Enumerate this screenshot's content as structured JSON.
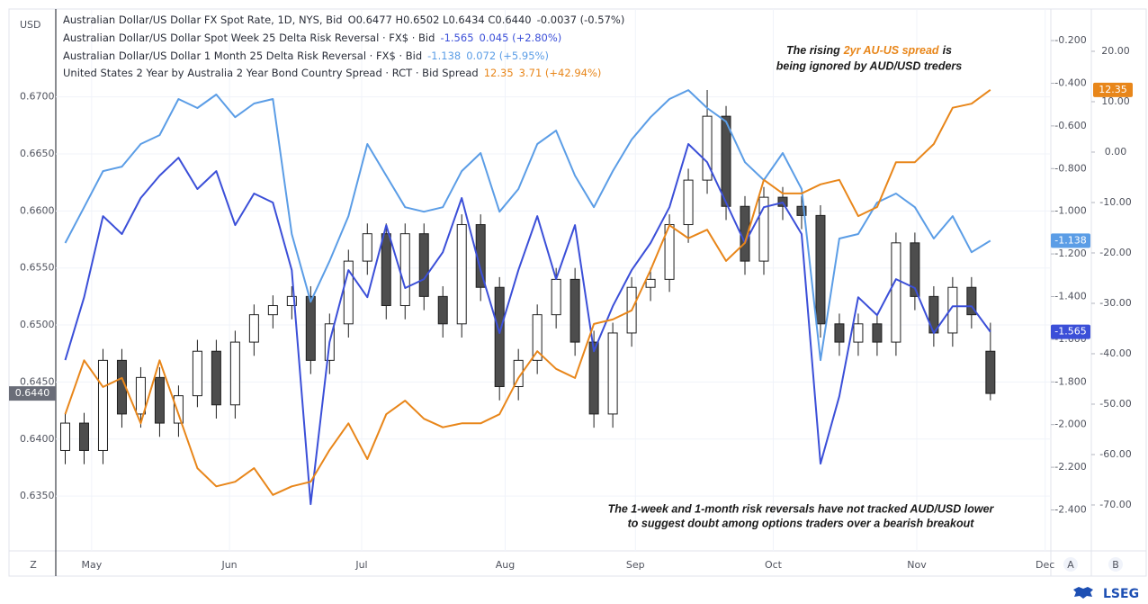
{
  "chart_data": {
    "type": "candlestick",
    "axis_unit": "USD",
    "price": {
      "name": "Australian Dollar/US Dollar FX Spot Rate, 1D, NYS, Bid",
      "quote": "O0.6477 H0.6502 L0.6434 C0.6440",
      "change": "-0.0037 (-0.57%)",
      "tag": "0.6440",
      "up_color": "#ffffff",
      "down_color": "#4d4d4d",
      "outline": "#1e1e1e"
    },
    "ohlc": {
      "open": [
        0.639,
        0.6414,
        0.639,
        0.6469,
        0.6422,
        0.6454,
        0.6414,
        0.6438,
        0.6477,
        0.643,
        0.6485,
        0.6509,
        0.6517,
        0.6525,
        0.6469,
        0.6501,
        0.6556,
        0.658,
        0.6517,
        0.658,
        0.6525,
        0.6501,
        0.6588,
        0.6533,
        0.6446,
        0.6469,
        0.6509,
        0.654,
        0.6485,
        0.6422,
        0.6493,
        0.6533,
        0.654,
        0.6588,
        0.6627,
        0.6683,
        0.6604,
        0.6556,
        0.6612,
        0.6604,
        0.6596,
        0.6501,
        0.6485,
        0.6501,
        0.6485,
        0.6572,
        0.6525,
        0.6493,
        0.6533,
        0.6477
      ],
      "high": [
        0.6423,
        0.6423,
        0.6479,
        0.6479,
        0.6463,
        0.6463,
        0.6447,
        0.6487,
        0.6487,
        0.6495,
        0.6518,
        0.6526,
        0.6534,
        0.6534,
        0.651,
        0.6566,
        0.6589,
        0.6589,
        0.6589,
        0.6589,
        0.6534,
        0.6597,
        0.6597,
        0.6542,
        0.6479,
        0.6518,
        0.655,
        0.655,
        0.6495,
        0.6502,
        0.6542,
        0.655,
        0.6597,
        0.6637,
        0.6706,
        0.6692,
        0.6613,
        0.6621,
        0.6621,
        0.6613,
        0.6605,
        0.651,
        0.651,
        0.651,
        0.6581,
        0.6581,
        0.6534,
        0.6542,
        0.6542,
        0.6502
      ],
      "low": [
        0.6378,
        0.6378,
        0.6378,
        0.641,
        0.641,
        0.6402,
        0.6402,
        0.6428,
        0.6418,
        0.6418,
        0.6473,
        0.6497,
        0.6505,
        0.6457,
        0.6457,
        0.6489,
        0.6544,
        0.6505,
        0.6505,
        0.6513,
        0.6489,
        0.6489,
        0.6521,
        0.6434,
        0.6434,
        0.6457,
        0.6497,
        0.6473,
        0.641,
        0.641,
        0.6481,
        0.6521,
        0.6529,
        0.6572,
        0.6615,
        0.6592,
        0.6544,
        0.6544,
        0.6592,
        0.6584,
        0.6489,
        0.6473,
        0.6473,
        0.6473,
        0.6473,
        0.6513,
        0.6481,
        0.6481,
        0.6497,
        0.6434
      ],
      "close": [
        0.6414,
        0.639,
        0.6469,
        0.6422,
        0.6454,
        0.6414,
        0.6438,
        0.6477,
        0.643,
        0.6485,
        0.6509,
        0.6517,
        0.6525,
        0.6469,
        0.6501,
        0.6556,
        0.658,
        0.6517,
        0.658,
        0.6525,
        0.6501,
        0.6588,
        0.6533,
        0.6446,
        0.6469,
        0.6509,
        0.654,
        0.6485,
        0.6422,
        0.6493,
        0.6533,
        0.654,
        0.6588,
        0.6627,
        0.6683,
        0.6604,
        0.6556,
        0.6612,
        0.6604,
        0.6596,
        0.6501,
        0.6485,
        0.6501,
        0.6485,
        0.6572,
        0.6525,
        0.6493,
        0.6533,
        0.6509,
        0.644
      ]
    },
    "series": [
      {
        "name": "Australian Dollar/US Dollar Spot Week 25 Delta Risk Reversal · FX$ · Bid",
        "last": "-1.565",
        "change": "0.045 (+2.80%)",
        "color": "#3b4fd8",
        "axis": "y2",
        "values": [
          -1.698,
          -1.403,
          -1.023,
          -1.107,
          -0.938,
          -0.833,
          -0.749,
          -0.896,
          -0.812,
          -1.065,
          -0.917,
          -0.959,
          -1.276,
          -2.373,
          -1.613,
          -1.276,
          -1.403,
          -1.065,
          -1.36,
          -1.318,
          -1.192,
          -0.938,
          -1.276,
          -1.571,
          -1.276,
          -1.023,
          -1.318,
          -1.065,
          -1.656,
          -1.445,
          -1.276,
          -1.149,
          -0.981,
          -0.685,
          -0.77,
          -0.959,
          -1.149,
          -0.981,
          -0.959,
          -1.107,
          -2.183,
          -1.867,
          -1.403,
          -1.487,
          -1.318,
          -1.36,
          -1.571,
          -1.445,
          -1.445,
          -1.565
        ]
      },
      {
        "name": "Australian Dollar/US Dollar 1 Month 25 Delta Risk Reversal · FX$ · Bid",
        "last": "-1.138",
        "change": "0.072 (+5.95%)",
        "color": "#5b9de6",
        "axis": "y2",
        "values": [
          -1.149,
          -0.981,
          -0.812,
          -0.791,
          -0.685,
          -0.643,
          -0.474,
          -0.516,
          -0.453,
          -0.559,
          -0.495,
          -0.474,
          -1.107,
          -1.424,
          -1.234,
          -1.023,
          -0.685,
          -0.833,
          -0.981,
          -1.002,
          -0.981,
          -0.812,
          -0.727,
          -1.002,
          -0.896,
          -0.685,
          -0.622,
          -0.833,
          -0.981,
          -0.812,
          -0.664,
          -0.559,
          -0.474,
          -0.432,
          -0.516,
          -0.58,
          -0.77,
          -0.854,
          -0.727,
          -0.896,
          -1.698,
          -1.128,
          -1.107,
          -0.959,
          -0.917,
          -0.981,
          -1.128,
          -1.023,
          -1.192,
          -1.138
        ]
      },
      {
        "name": "United States 2 Year by Australia 2 Year Bond Country Spread · RCT · Bid Spread",
        "last": "12.35",
        "change": "3.71 (+42.94%)",
        "color": "#e8861a",
        "axis": "y3",
        "values": [
          -52.0,
          -41.3,
          -46.6,
          -44.8,
          -53.8,
          -41.3,
          -52.0,
          -62.7,
          -66.3,
          -65.4,
          -62.7,
          -68.0,
          -66.3,
          -65.4,
          -59.1,
          -53.8,
          -60.9,
          -52.0,
          -49.3,
          -52.9,
          -54.6,
          -53.8,
          -53.8,
          -52.0,
          -44.8,
          -39.5,
          -43.0,
          -44.8,
          -34.1,
          -33.2,
          -31.4,
          -23.4,
          -14.5,
          -17.1,
          -15.4,
          -21.6,
          -18.0,
          -5.5,
          -8.2,
          -8.2,
          -6.4,
          -5.5,
          -12.7,
          -10.9,
          -2.0,
          -2.0,
          1.6,
          8.8,
          9.6,
          12.35
        ]
      }
    ],
    "xlim": [
      -0.5,
      52.2
    ],
    "xticks": [
      {
        "value": 1.4,
        "label": "May"
      },
      {
        "value": 8.7,
        "label": "Jun"
      },
      {
        "value": 15.7,
        "label": "Jul"
      },
      {
        "value": 23.3,
        "label": "Aug"
      },
      {
        "value": 30.2,
        "label": "Sep"
      },
      {
        "value": 37.5,
        "label": "Oct"
      },
      {
        "value": 45.1,
        "label": "Nov"
      },
      {
        "value": 51.9,
        "label": "Dec"
      }
    ],
    "ylim": [
      0.6302,
      0.6777
    ],
    "yticks": [
      {
        "value": 0.635,
        "label": "0.6350"
      },
      {
        "value": 0.64,
        "label": "0.6400"
      },
      {
        "value": 0.645,
        "label": "0.6450"
      },
      {
        "value": 0.65,
        "label": "0.6500"
      },
      {
        "value": 0.655,
        "label": "0.6550"
      },
      {
        "value": 0.66,
        "label": "0.6600"
      },
      {
        "value": 0.665,
        "label": "0.6650"
      },
      {
        "value": 0.67,
        "label": "0.6700"
      }
    ],
    "y2lim": [
      -2.592,
      -0.052
    ],
    "y2ticks": [
      {
        "value": -0.2,
        "label": "-0.200"
      },
      {
        "value": -0.4,
        "label": "-0.400"
      },
      {
        "value": -0.6,
        "label": "-0.600"
      },
      {
        "value": -0.8,
        "label": "-0.800"
      },
      {
        "value": -1.0,
        "label": "-1.000"
      },
      {
        "value": -1.2,
        "label": "-1.200"
      },
      {
        "value": -1.4,
        "label": "-1.400"
      },
      {
        "value": -1.6,
        "label": "-1.600"
      },
      {
        "value": -1.8,
        "label": "-1.800"
      },
      {
        "value": -2.0,
        "label": "-2.000"
      },
      {
        "value": -2.2,
        "label": "-2.200"
      },
      {
        "value": -2.4,
        "label": "-2.400"
      }
    ],
    "y3lim": [
      -79.11,
      28.39
    ],
    "y3ticks": [
      {
        "value": 20,
        "label": "20.00"
      },
      {
        "value": 10,
        "label": "10.00"
      },
      {
        "value": 0,
        "label": "0.00"
      },
      {
        "value": -10,
        "label": "-10.00"
      },
      {
        "value": -20,
        "label": "-20.00"
      },
      {
        "value": -30,
        "label": "-30.00"
      },
      {
        "value": -40,
        "label": "-40.00"
      },
      {
        "value": -50,
        "label": "-50.00"
      },
      {
        "value": -60,
        "label": "-60.00"
      },
      {
        "value": -70,
        "label": "-70.00"
      }
    ],
    "grid": true,
    "annotations": {
      "spread": {
        "before": "The rising",
        "highlight": "2yr AU-US spread",
        "after": "is",
        "line2": "being ignored by AUD/USD treders"
      },
      "risk_reversals": {
        "line1": "The 1-week and 1-month risk reversals have not tracked AUD/USD lower",
        "line2": "to suggest doubt among options traders over a bearish breakout"
      }
    }
  },
  "ui": {
    "z_button": "Z",
    "a_button": "A",
    "b_button": "B",
    "logo": "LSEG"
  }
}
